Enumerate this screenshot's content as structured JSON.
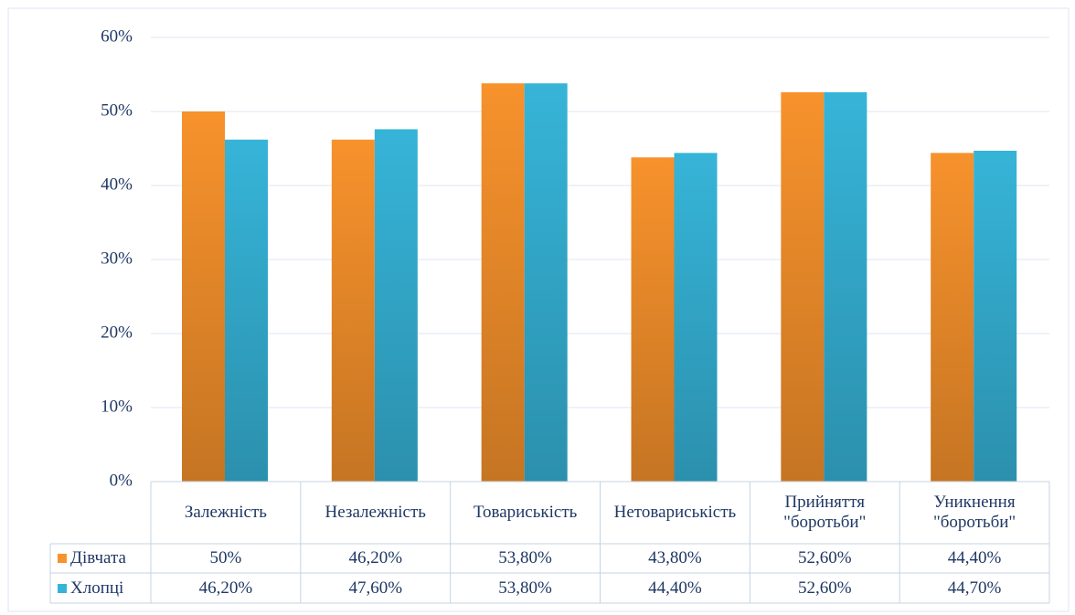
{
  "chart_data": {
    "type": "bar",
    "categories": [
      "Залежність",
      "Незалежність",
      "Товариськість",
      "Нетовариськість",
      "Прийняття \"боротьби\"",
      "Уникнення \"боротьби\""
    ],
    "series": [
      {
        "name": "Дівчата",
        "color": "#f7922c",
        "values": [
          50,
          46.2,
          53.8,
          43.8,
          52.6,
          44.4
        ],
        "value_labels": [
          "50%",
          "46,20%",
          "53,80%",
          "43,80%",
          "52,60%",
          "44,40%"
        ]
      },
      {
        "name": "Хлопці",
        "color": "#36b4d8",
        "values": [
          46.2,
          47.6,
          53.8,
          44.4,
          52.6,
          44.7
        ],
        "value_labels": [
          "46,20%",
          "47,60%",
          "53,80%",
          "44,40%",
          "52,60%",
          "44,70%"
        ]
      }
    ],
    "ylim": [
      0,
      60
    ],
    "yticks": [
      {
        "value": 0,
        "label": "0%"
      },
      {
        "value": 10,
        "label": "10%"
      },
      {
        "value": 20,
        "label": "20%"
      },
      {
        "value": 30,
        "label": "30%"
      },
      {
        "value": 40,
        "label": "40%"
      },
      {
        "value": 50,
        "label": "50%"
      },
      {
        "value": 60,
        "label": "60%"
      }
    ],
    "grid": true
  }
}
